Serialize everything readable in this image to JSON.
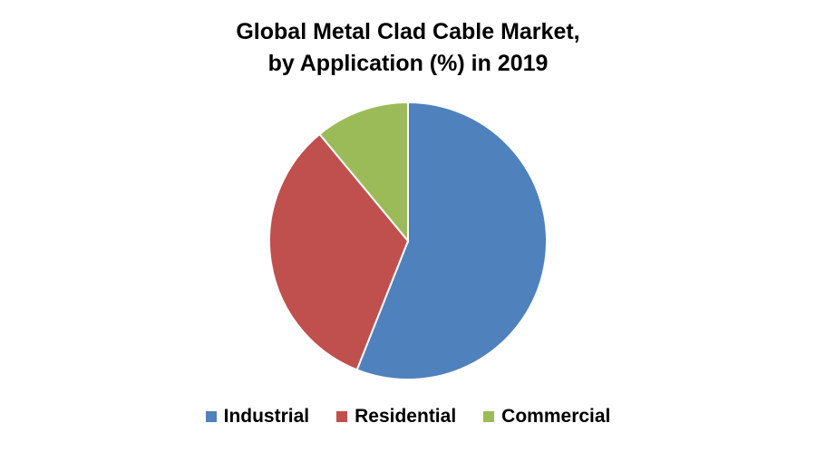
{
  "chart_data": {
    "type": "pie",
    "title": "Global Metal Clad Cable Market,",
    "subtitle": "by Application (%) in 2019",
    "categories": [
      "Industrial",
      "Residential",
      "Commercial"
    ],
    "values": [
      56,
      33,
      11
    ],
    "colors": [
      "#4F81BD",
      "#C0504D",
      "#9BBB59"
    ],
    "start_angle_deg": 0,
    "direction": "clockwise",
    "legend_position": "bottom",
    "data_labels": false
  }
}
